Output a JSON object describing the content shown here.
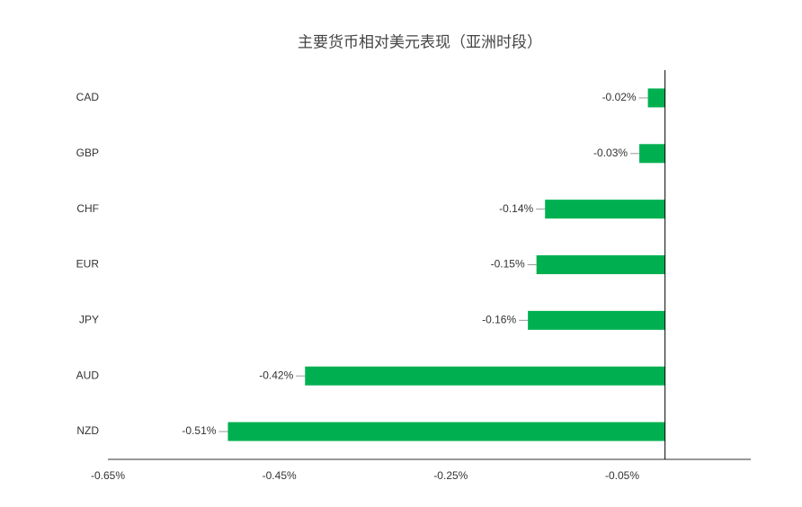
{
  "chart_data": {
    "type": "hbar",
    "title": "主要货币相对美元表现（亚洲时段）",
    "categories": [
      "CAD",
      "GBP",
      "CHF",
      "EUR",
      "JPY",
      "AUD",
      "NZD"
    ],
    "values": [
      -0.02,
      -0.03,
      -0.14,
      -0.15,
      -0.16,
      -0.42,
      -0.51
    ],
    "value_labels": [
      "-0.02%",
      "-0.03%",
      "-0.14%",
      "-0.15%",
      "-0.16%",
      "-0.42%",
      "-0.51%"
    ],
    "color": "#00b050",
    "xlim": [
      -0.65,
      0.1
    ],
    "xticks": [
      {
        "value": -0.65,
        "label": "-0.65%"
      },
      {
        "value": -0.45,
        "label": "-0.45%"
      },
      {
        "value": -0.25,
        "label": "-0.25%"
      },
      {
        "value": -0.05,
        "label": "-0.05%"
      }
    ],
    "grid": false
  }
}
